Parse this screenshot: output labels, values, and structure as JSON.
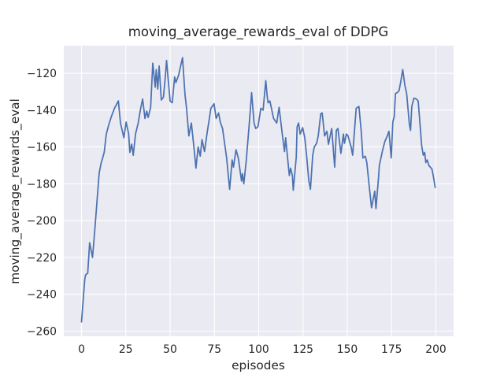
{
  "figure": {
    "title": "moving_average_rewards_eval of DDPG",
    "xlabel": "episodes",
    "ylabel": "moving_average_rewards_eval"
  },
  "chart_data": {
    "type": "line",
    "title": "moving_average_rewards_eval of DDPG",
    "xlabel": "episodes",
    "ylabel": "moving_average_rewards_eval",
    "xlim": [
      -10,
      210
    ],
    "ylim": [
      -262.8,
      -105.0
    ],
    "xticks": [
      0,
      25,
      50,
      75,
      100,
      125,
      150,
      175,
      200
    ],
    "yticks": [
      -260,
      -240,
      -220,
      -200,
      -180,
      -160,
      -140,
      -120
    ],
    "grid": true,
    "legend": false,
    "style": {
      "figure_bg": "#ffffff",
      "axes_bg": "#eaeaf2",
      "grid_color": "#ffffff",
      "line_color": "#4c72b0",
      "text_color": "#262626"
    },
    "series": [
      {
        "name": "moving_average_rewards_eval",
        "color": "#4c72b0",
        "x": [
          0,
          1.8,
          2.3,
          3.5,
          4.6,
          6.2,
          7.5,
          9,
          10,
          11,
          12.8,
          14,
          15.5,
          17,
          18.6,
          20.8,
          22,
          23.9,
          25.2,
          26.6,
          27.3,
          28.3,
          29.2,
          30.5,
          32,
          33.2,
          34.5,
          35.8,
          36.8,
          37.6,
          39,
          40.2,
          41.6,
          42.2,
          43,
          43.8,
          45,
          46.2,
          47.2,
          48,
          48.8,
          50,
          51.2,
          52.6,
          53.3,
          54.8,
          57,
          58.4,
          59.3,
          60.6,
          62,
          63.6,
          64.6,
          65.8,
          67,
          68,
          69.4,
          70.8,
          73,
          74.8,
          76,
          77.4,
          78.3,
          79.6,
          81.9,
          83.6,
          85,
          85.8,
          87.2,
          88.5,
          90.3,
          90.8,
          91.6,
          93,
          94.7,
          96,
          97.4,
          98.3,
          99.6,
          101.2,
          102.5,
          104,
          104.8,
          105.3,
          106.3,
          108.4,
          110.2,
          111.5,
          113.7,
          114.6,
          115.2,
          116,
          117.3,
          118,
          119,
          119.5,
          121.2,
          121.7,
          122.5,
          123.4,
          124.8,
          126,
          127,
          128.3,
          129.2,
          130.5,
          131.4,
          132.7,
          133.6,
          135,
          135.8,
          137.2,
          138.5,
          139.4,
          141.2,
          142.9,
          143.8,
          144.7,
          146.4,
          147.8,
          148.4,
          149.5,
          150.4,
          152.2,
          153,
          155,
          156.6,
          158,
          158.8,
          160.2,
          161,
          162.4,
          163.7,
          165.5,
          166.2,
          167.7,
          168.1,
          170,
          171.2,
          172.6,
          173.5,
          174.8,
          175.7,
          176.5,
          177.2,
          178.2,
          179.2,
          180.1,
          181.3,
          182.5,
          183.5,
          185,
          185.7,
          186.4,
          187.6,
          189,
          190,
          190.7,
          192,
          192.9,
          193.7,
          194.3,
          195.1,
          196,
          197.8,
          198.6,
          199.6
        ],
        "y": [
          -255,
          -232,
          -229.5,
          -228.5,
          -212,
          -220,
          -205,
          -186,
          -174,
          -169,
          -163,
          -153,
          -147.5,
          -143,
          -139,
          -135,
          -147,
          -155,
          -146.5,
          -153,
          -163,
          -158.5,
          -164.5,
          -153,
          -147,
          -140,
          -134,
          -144.5,
          -140.5,
          -144,
          -138.5,
          -114.5,
          -127.5,
          -118,
          -128.5,
          -116,
          -134.5,
          -133,
          -123,
          -113,
          -122,
          -135,
          -136,
          -122,
          -125,
          -121,
          -111.5,
          -131.5,
          -139,
          -154,
          -147,
          -161.5,
          -171.5,
          -160,
          -165,
          -156,
          -162.5,
          -153,
          -139,
          -136.5,
          -144.5,
          -141.5,
          -146.5,
          -150,
          -166,
          -183,
          -167,
          -171,
          -161.5,
          -166,
          -178.5,
          -174.5,
          -180,
          -167,
          -147,
          -130.5,
          -147,
          -150,
          -149,
          -139,
          -140,
          -124,
          -132.5,
          -136,
          -135,
          -144.5,
          -147,
          -138.5,
          -156,
          -162.5,
          -155,
          -163,
          -175.5,
          -171.5,
          -175.5,
          -183.5,
          -165.5,
          -149,
          -147,
          -153,
          -149.5,
          -155,
          -164.5,
          -178.5,
          -183,
          -164.5,
          -160,
          -158,
          -154,
          -142,
          -141.5,
          -154,
          -151.5,
          -158.5,
          -150,
          -171,
          -151,
          -150,
          -163.5,
          -153,
          -158,
          -153,
          -154,
          -160,
          -164.5,
          -139,
          -138,
          -153,
          -166,
          -165,
          -168.5,
          -181.5,
          -193,
          -184,
          -193.5,
          -176,
          -170,
          -161.5,
          -157,
          -154,
          -151.5,
          -166,
          -146.5,
          -143.5,
          -131,
          -130.5,
          -129.5,
          -125,
          -118,
          -126.5,
          -131,
          -147.5,
          -151,
          -138,
          -133.5,
          -134,
          -135,
          -143.5,
          -159.5,
          -164.5,
          -163,
          -168.5,
          -167,
          -170,
          -172,
          -176,
          -182
        ]
      }
    ]
  }
}
